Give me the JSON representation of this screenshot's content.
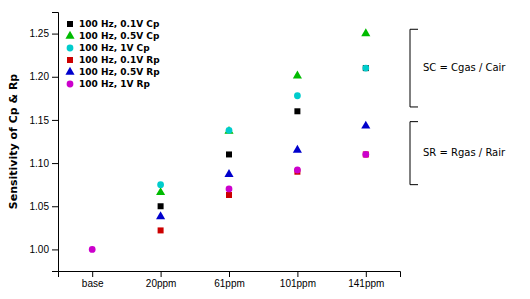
{
  "chart_data": {
    "type": "scatter",
    "categories": [
      "base",
      "20ppm",
      "61ppm",
      "101ppm",
      "141ppm"
    ],
    "series": [
      {
        "name": "100 Hz, 0.1V Cp",
        "color": "#000000",
        "marker": "square",
        "values": [
          null,
          1.05,
          1.11,
          1.16,
          1.21
        ]
      },
      {
        "name": "100 Hz, 0.5V Cp",
        "color": "#00bb00",
        "marker": "triangle",
        "values": [
          null,
          1.066,
          1.137,
          1.201,
          1.25
        ]
      },
      {
        "name": "100 Hz, 1V Cp",
        "color": "#00cccc",
        "marker": "circle",
        "values": [
          null,
          1.075,
          1.138,
          1.178,
          1.21
        ]
      },
      {
        "name": "100 Hz, 0.1V Rp",
        "color": "#cc0000",
        "marker": "square",
        "values": [
          null,
          1.022,
          1.063,
          1.09,
          1.11
        ]
      },
      {
        "name": "100 Hz, 0.5V Rp",
        "color": "#0000cc",
        "marker": "triangle",
        "values": [
          null,
          1.038,
          1.087,
          1.115,
          1.143
        ]
      },
      {
        "name": "100 Hz, 1V Rp",
        "color": "#cc00cc",
        "marker": "circle",
        "values": [
          1.0,
          null,
          1.07,
          1.092,
          1.11
        ]
      }
    ],
    "y_label": "Sensitivity of Cp & Rp",
    "ylim": [
      0.975,
      1.275
    ],
    "yticks": [
      {
        "value": 1.0,
        "label": "1.00"
      },
      1.05,
      {
        "value": 1.1,
        "label": "1.10"
      },
      1.15,
      {
        "value": 1.2,
        "label": "1.20"
      },
      1.25
    ],
    "legend": "upper left",
    "grid": false,
    "annotations": [
      {
        "text": "SC = Cgas / Cair",
        "y_range": [
          1.165,
          1.255
        ]
      },
      {
        "text": "SR = Rgas / Rair",
        "y_range": [
          1.075,
          1.148
        ]
      }
    ]
  }
}
